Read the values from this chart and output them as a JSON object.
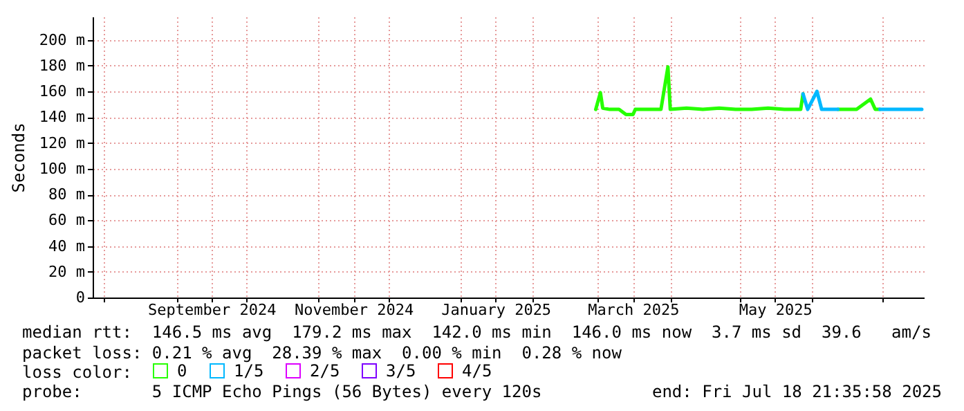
{
  "chart_data": {
    "type": "line",
    "ylabel": "Seconds",
    "legend_title": "loss color:",
    "legend": "bottom",
    "grid": true,
    "xlim": [
      "2024-07-27",
      "2025-07-18T21:36"
    ],
    "xticks": [
      {
        "value": "2024-08-01",
        "label": null
      },
      {
        "value": "2024-09-01",
        "label": null
      },
      {
        "value": "2024-09-16",
        "label": "September 2024"
      },
      {
        "value": "2024-10-01",
        "label": null
      },
      {
        "value": "2024-11-01",
        "label": null
      },
      {
        "value": "2024-11-16",
        "label": "November 2024"
      },
      {
        "value": "2024-12-01",
        "label": null
      },
      {
        "value": "2025-01-01",
        "label": null
      },
      {
        "value": "2025-01-16",
        "label": "January 2025"
      },
      {
        "value": "2025-02-01",
        "label": null
      },
      {
        "value": "2025-03-01",
        "label": null
      },
      {
        "value": "2025-03-16",
        "label": "March 2025"
      },
      {
        "value": "2025-04-01",
        "label": null
      },
      {
        "value": "2025-05-01",
        "label": null
      },
      {
        "value": "2025-05-16",
        "label": "May 2025"
      },
      {
        "value": "2025-06-01",
        "label": null
      },
      {
        "value": "2025-07-01",
        "label": null
      }
    ],
    "ylim": [
      0,
      218
    ],
    "yticks": [
      {
        "value": 0,
        "label": "0"
      },
      {
        "value": 20,
        "label": "20 m"
      },
      {
        "value": 40,
        "label": "40 m"
      },
      {
        "value": 60,
        "label": "60 m"
      },
      {
        "value": 80,
        "label": "80 m"
      },
      {
        "value": 100,
        "label": "100 m"
      },
      {
        "value": 120,
        "label": "120 m"
      },
      {
        "value": 140,
        "label": "140 m"
      },
      {
        "value": 160,
        "label": "160 m"
      },
      {
        "value": 180,
        "label": "180 m"
      },
      {
        "value": 200,
        "label": "200 m"
      }
    ],
    "series": [
      {
        "name": "0",
        "color": "#26ff00",
        "x": [
          "2025-02-28",
          "2025-03-02",
          "2025-03-03",
          "2025-03-06",
          "2025-03-10",
          "2025-03-13",
          "2025-03-16",
          "2025-03-17",
          "2025-03-22",
          "2025-03-28",
          "2025-03-31",
          "2025-04-01",
          "2025-04-08",
          "2025-04-15",
          "2025-04-22",
          "2025-04-29",
          "2025-05-06",
          "2025-05-13",
          "2025-05-20",
          "2025-05-27",
          "2025-05-28",
          null,
          "2025-06-12",
          "2025-06-20",
          "2025-06-26",
          "2025-06-28",
          "2025-06-30"
        ],
        "values": [
          146,
          159,
          147,
          146,
          146,
          142,
          142,
          146,
          146,
          146,
          179,
          146,
          147,
          146,
          147,
          146,
          146,
          147,
          146,
          146,
          158,
          null,
          146,
          146,
          154,
          146,
          146
        ]
      },
      {
        "name": "1/5",
        "color": "#00b8ff",
        "x": [
          "2025-05-28",
          "2025-05-30",
          "2025-06-03",
          "2025-06-05",
          "2025-06-12",
          null,
          "2025-06-30",
          "2025-07-05",
          "2025-07-10",
          "2025-07-15",
          "2025-07-18"
        ],
        "values": [
          158,
          146,
          160,
          146,
          146,
          null,
          146,
          146,
          146,
          146,
          146
        ]
      },
      {
        "name": "2/5",
        "color": "#dd00ff"
      },
      {
        "name": "3/5",
        "color": "#7e00ff"
      },
      {
        "name": "4/5",
        "color": "#ff0000"
      }
    ],
    "annotations": [
      "median rtt:  146.5 ms avg  179.2 ms max  142.0 ms min  146.0 ms now  3.7 ms sd  39.6   am/s",
      "packet loss: 0.21 % avg  28.39 % max  0.00 % min  0.28 % now",
      "probe:       5 ICMP Echo Pings (56 Bytes) every 120s",
      "end: Fri Jul 18 21:35:58 2025"
    ]
  }
}
